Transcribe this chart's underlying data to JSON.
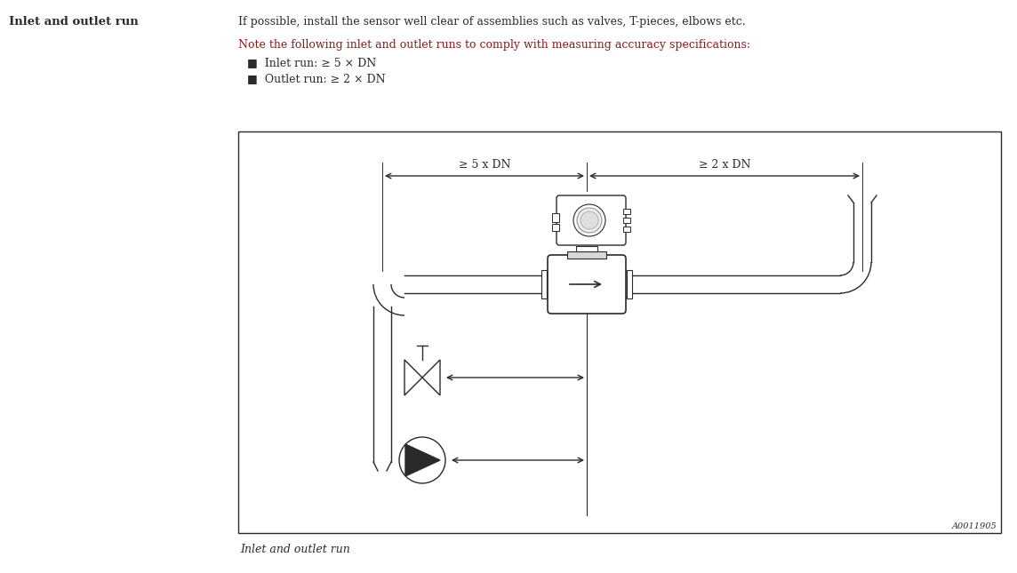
{
  "title_left": "Inlet and outlet run",
  "text_line1": "If possible, install the sensor well clear of assemblies such as valves, T-pieces, elbows etc.",
  "text_line2": "Note the following inlet and outlet runs to comply with measuring accuracy specifications:",
  "bullet1": "■  Inlet run: ≥ 5 × DN",
  "bullet2": "■  Outlet run: ≥ 2 × DN",
  "label_5dn": "≥ 5 x DN",
  "label_2dn": "≥ 2 x DN",
  "caption": "Inlet and outlet run",
  "ref_code": "A0011905",
  "bg_color": "#ffffff",
  "line_color": "#2a2a2a",
  "text_color_body": "#2a2a2a",
  "text_color_note": "#8b1a1a"
}
